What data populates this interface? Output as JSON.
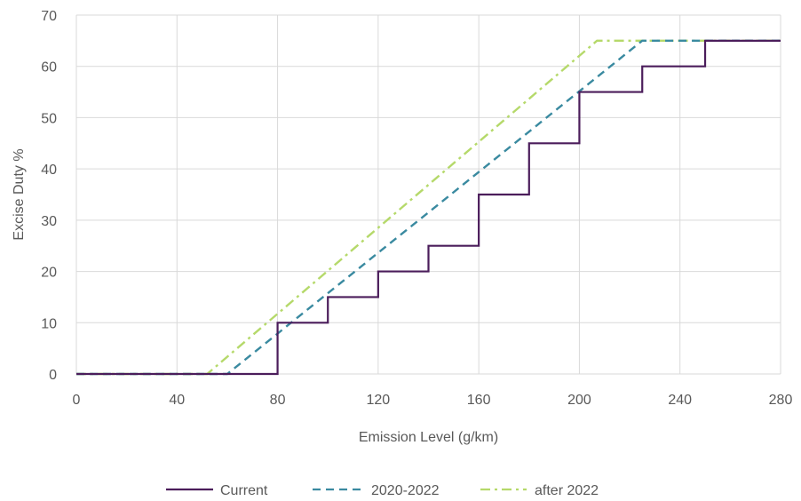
{
  "chart_data": {
    "type": "line",
    "title": "",
    "xlabel": "Emission Level (g/km)",
    "ylabel": "Excise Duty %",
    "xlim": [
      0,
      280
    ],
    "ylim": [
      0,
      70
    ],
    "xticks": [
      0,
      40,
      80,
      120,
      160,
      200,
      240,
      280
    ],
    "yticks": [
      0,
      10,
      20,
      30,
      40,
      50,
      60,
      70
    ],
    "grid": true,
    "legend_position": "bottom",
    "series": [
      {
        "name": "Current",
        "color": "#4b1d5b",
        "dash": "solid",
        "x": [
          0,
          80,
          80,
          100,
          100,
          120,
          120,
          140,
          140,
          160,
          160,
          180,
          180,
          200,
          200,
          225,
          225,
          250,
          250,
          280
        ],
        "y": [
          0,
          0,
          10,
          10,
          15,
          15,
          20,
          20,
          25,
          25,
          35,
          35,
          45,
          45,
          55,
          55,
          60,
          60,
          65,
          65
        ]
      },
      {
        "name": "2020-2022",
        "color": "#3a8aa0",
        "dash": "dashed",
        "x": [
          0,
          60,
          225,
          280
        ],
        "y": [
          0,
          0,
          65,
          65
        ]
      },
      {
        "name": "after 2022",
        "color": "#b5d96a",
        "dash": "dashdot",
        "x": [
          0,
          52,
          207,
          280
        ],
        "y": [
          0,
          0,
          65,
          65
        ]
      }
    ]
  }
}
